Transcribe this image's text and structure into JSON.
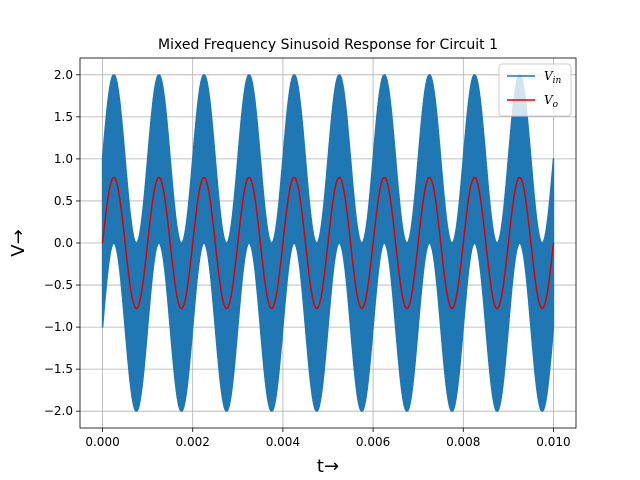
{
  "chart_data": {
    "type": "line",
    "title": "Mixed Frequency Sinusoid Response for Circuit 1",
    "xlabel": "t→",
    "ylabel": "V→",
    "xlim": [
      -0.0005,
      0.0105
    ],
    "ylim": [
      -2.2,
      2.2
    ],
    "grid": true,
    "legend_position": "top-right",
    "x_ticks": [
      0.0,
      0.002,
      0.004,
      0.006,
      0.008,
      0.01
    ],
    "x_tick_labels": [
      "0.000",
      "0.002",
      "0.004",
      "0.006",
      "0.008",
      "0.010"
    ],
    "y_ticks": [
      -2.0,
      -1.5,
      -1.0,
      -0.5,
      0.0,
      0.5,
      1.0,
      1.5,
      2.0
    ],
    "y_tick_labels": [
      "−2.0",
      "−1.5",
      "−1.0",
      "−0.5",
      "0.0",
      "0.5",
      "1.0",
      "1.5",
      "2.0"
    ],
    "series": [
      {
        "name": "V",
        "subscript": "in",
        "color": "#1f77b4",
        "description_values": {
          "x_range": [
            0.0,
            0.01
          ],
          "components": [
            {
              "amplitude": 1.0,
              "frequency_hz": 1000
            },
            {
              "amplitude": 1.0,
              "frequency_hz": 100000
            }
          ],
          "y_range": [
            -2.0,
            2.0
          ]
        }
      },
      {
        "name": "V",
        "subscript": "o",
        "color": "#e00000",
        "description_values": {
          "x_range": [
            0.0,
            0.01
          ],
          "components": [
            {
              "amplitude": 0.78,
              "frequency_hz": 1000
            }
          ],
          "y_range": [
            -0.78,
            0.78
          ]
        }
      }
    ]
  }
}
